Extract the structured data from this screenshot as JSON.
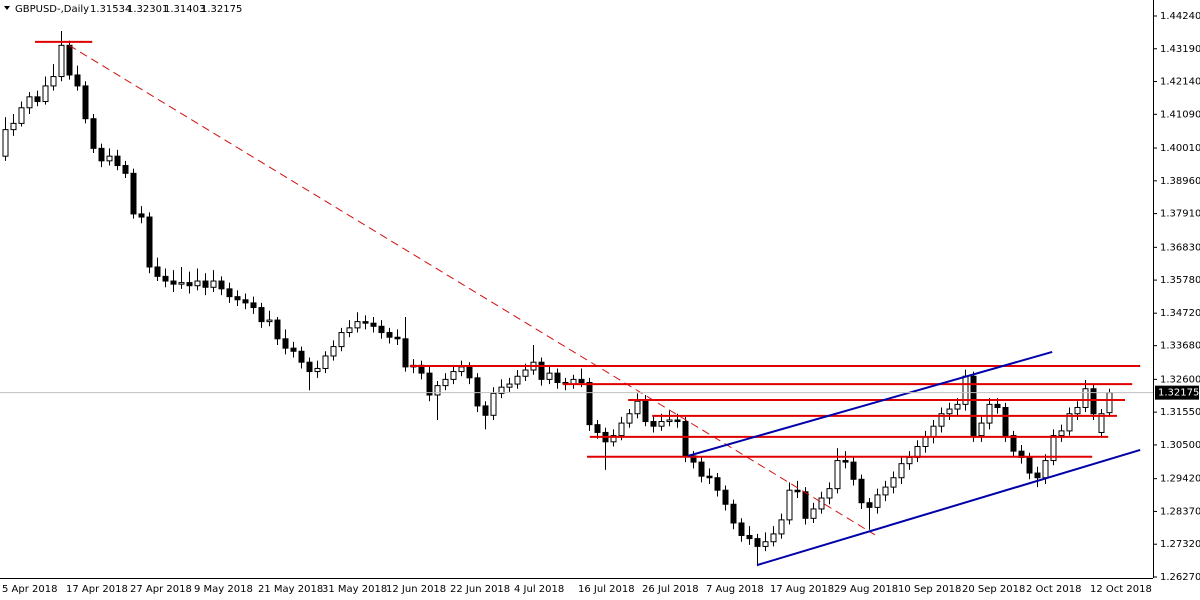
{
  "chart_data": {
    "type": "candlestick",
    "symbol": "GBPUSD-,Daily",
    "categories": [
      "5 Apr 2018",
      null,
      null,
      null,
      null,
      null,
      null,
      null,
      "17 Apr 2018",
      null,
      null,
      null,
      null,
      null,
      null,
      null,
      "27 Apr 2018",
      null,
      null,
      null,
      null,
      null,
      null,
      null,
      "9 May 2018",
      null,
      null,
      null,
      null,
      null,
      null,
      null,
      "21 May 2018",
      null,
      null,
      null,
      null,
      null,
      null,
      null,
      "31 May 2018",
      null,
      null,
      null,
      null,
      null,
      null,
      null,
      "12 Jun 2018",
      null,
      null,
      null,
      null,
      null,
      null,
      null,
      "22 Jun 2018",
      null,
      null,
      null,
      null,
      null,
      null,
      null,
      "4 Jul 2018",
      null,
      null,
      null,
      null,
      null,
      null,
      null,
      "16 Jul 2018",
      null,
      null,
      null,
      null,
      null,
      null,
      null,
      "26 Jul 2018",
      null,
      null,
      null,
      null,
      null,
      null,
      null,
      "7 Aug 2018",
      null,
      null,
      null,
      null,
      null,
      null,
      null,
      "17 Aug 2018",
      null,
      null,
      null,
      null,
      null,
      null,
      null,
      "29 Aug 2018",
      null,
      null,
      null,
      null,
      null,
      null,
      null,
      "10 Sep 2018",
      null,
      null,
      null,
      null,
      null,
      null,
      null,
      "20 Sep 2018",
      null,
      null,
      null,
      null,
      null,
      null,
      null,
      "2 Oct 2018",
      null,
      null,
      null,
      null,
      null,
      null,
      null,
      "12 Oct 2018",
      null,
      null
    ],
    "ohlc": [
      [
        1.3975,
        1.41,
        1.396,
        1.406
      ],
      [
        1.406,
        1.411,
        1.404,
        1.408
      ],
      [
        1.408,
        1.415,
        1.407,
        1.413
      ],
      [
        1.413,
        1.418,
        1.411,
        1.4165
      ],
      [
        1.4165,
        1.4185,
        1.4135,
        1.415
      ],
      [
        1.415,
        1.423,
        1.414,
        1.42
      ],
      [
        1.42,
        1.427,
        1.4185,
        1.423
      ],
      [
        1.423,
        1.4376,
        1.4215,
        1.433
      ],
      [
        1.433,
        1.4345,
        1.422,
        1.4235
      ],
      [
        1.4235,
        1.4265,
        1.4185,
        1.42
      ],
      [
        1.42,
        1.4215,
        1.408,
        1.4095
      ],
      [
        1.4095,
        1.411,
        1.3985,
        1.4
      ],
      [
        1.4,
        1.4015,
        1.394,
        1.396
      ],
      [
        1.396,
        1.4,
        1.3945,
        1.3975
      ],
      [
        1.3975,
        1.3995,
        1.393,
        1.3945
      ],
      [
        1.3945,
        1.396,
        1.3905,
        1.392
      ],
      [
        1.392,
        1.3935,
        1.3775,
        1.379
      ],
      [
        1.379,
        1.3815,
        1.376,
        1.378
      ],
      [
        1.378,
        1.3795,
        1.36,
        1.362
      ],
      [
        1.362,
        1.365,
        1.3575,
        1.359
      ],
      [
        1.359,
        1.3615,
        1.3555,
        1.3575
      ],
      [
        1.3575,
        1.361,
        1.354,
        1.3565
      ],
      [
        1.3565,
        1.362,
        1.355,
        1.357
      ],
      [
        1.357,
        1.3605,
        1.3535,
        1.356
      ],
      [
        1.356,
        1.3615,
        1.3545,
        1.3575
      ],
      [
        1.3575,
        1.36,
        1.353,
        1.3555
      ],
      [
        1.3555,
        1.361,
        1.354,
        1.3575
      ],
      [
        1.3575,
        1.359,
        1.353,
        1.355
      ],
      [
        1.355,
        1.357,
        1.3505,
        1.3525
      ],
      [
        1.3525,
        1.3545,
        1.3495,
        1.3515
      ],
      [
        1.3515,
        1.3535,
        1.3485,
        1.3505
      ],
      [
        1.3505,
        1.3525,
        1.347,
        1.349
      ],
      [
        1.349,
        1.3505,
        1.3425,
        1.3445
      ],
      [
        1.3445,
        1.348,
        1.343,
        1.345
      ],
      [
        1.345,
        1.346,
        1.337,
        1.339
      ],
      [
        1.339,
        1.342,
        1.334,
        1.336
      ],
      [
        1.336,
        1.338,
        1.333,
        1.335
      ],
      [
        1.335,
        1.3365,
        1.3295,
        1.3315
      ],
      [
        1.3315,
        1.333,
        1.3225,
        1.3285
      ],
      [
        1.3285,
        1.332,
        1.3265,
        1.3295
      ],
      [
        1.3295,
        1.335,
        1.328,
        1.3335
      ],
      [
        1.3335,
        1.3385,
        1.332,
        1.3365
      ],
      [
        1.3365,
        1.3425,
        1.335,
        1.341
      ],
      [
        1.341,
        1.345,
        1.3395,
        1.3425
      ],
      [
        1.3425,
        1.3475,
        1.341,
        1.3445
      ],
      [
        1.3445,
        1.3465,
        1.342,
        1.344
      ],
      [
        1.344,
        1.346,
        1.341,
        1.343
      ],
      [
        1.343,
        1.345,
        1.339,
        1.341
      ],
      [
        1.341,
        1.3425,
        1.3375,
        1.3395
      ],
      [
        1.3395,
        1.342,
        1.337,
        1.339
      ],
      [
        1.339,
        1.346,
        1.3285,
        1.33
      ],
      [
        1.33,
        1.3325,
        1.328,
        1.3305
      ],
      [
        1.3305,
        1.332,
        1.326,
        1.328
      ],
      [
        1.328,
        1.33,
        1.319,
        1.321
      ],
      [
        1.321,
        1.3255,
        1.313,
        1.324
      ],
      [
        1.324,
        1.328,
        1.3225,
        1.326
      ],
      [
        1.326,
        1.33,
        1.3245,
        1.3285
      ],
      [
        1.3285,
        1.332,
        1.327,
        1.33
      ],
      [
        1.33,
        1.3315,
        1.3245,
        1.3265
      ],
      [
        1.3265,
        1.328,
        1.3155,
        1.3175
      ],
      [
        1.3175,
        1.319,
        1.31,
        1.3145
      ],
      [
        1.3145,
        1.3235,
        1.313,
        1.3215
      ],
      [
        1.3215,
        1.326,
        1.32,
        1.3235
      ],
      [
        1.3235,
        1.3265,
        1.322,
        1.3245
      ],
      [
        1.3245,
        1.329,
        1.323,
        1.327
      ],
      [
        1.327,
        1.331,
        1.3255,
        1.329
      ],
      [
        1.329,
        1.337,
        1.3275,
        1.3315
      ],
      [
        1.3315,
        1.333,
        1.324,
        1.326
      ],
      [
        1.326,
        1.33,
        1.3245,
        1.328
      ],
      [
        1.328,
        1.3295,
        1.323,
        1.325
      ],
      [
        1.325,
        1.3265,
        1.3225,
        1.3245
      ],
      [
        1.3245,
        1.3275,
        1.323,
        1.326
      ],
      [
        1.326,
        1.3295,
        1.3235,
        1.325
      ],
      [
        1.325,
        1.3265,
        1.3095,
        1.3115
      ],
      [
        1.3115,
        1.313,
        1.307,
        1.309
      ],
      [
        1.309,
        1.3105,
        1.297,
        1.306
      ],
      [
        1.306,
        1.31,
        1.3045,
        1.308
      ],
      [
        1.308,
        1.314,
        1.3065,
        1.312
      ],
      [
        1.312,
        1.3165,
        1.3105,
        1.315
      ],
      [
        1.315,
        1.3215,
        1.3135,
        1.319
      ],
      [
        1.319,
        1.321,
        1.311,
        1.3125
      ],
      [
        1.3125,
        1.3145,
        1.309,
        1.311
      ],
      [
        1.311,
        1.315,
        1.3095,
        1.3125
      ],
      [
        1.3125,
        1.316,
        1.311,
        1.313
      ],
      [
        1.313,
        1.315,
        1.3105,
        1.3125
      ],
      [
        1.3125,
        1.314,
        1.2995,
        1.3015
      ],
      [
        1.3015,
        1.303,
        1.2975,
        1.2995
      ],
      [
        1.2995,
        1.301,
        1.293,
        1.295
      ],
      [
        1.295,
        1.2975,
        1.2925,
        1.2945
      ],
      [
        1.2945,
        1.296,
        1.2885,
        1.2905
      ],
      [
        1.2905,
        1.292,
        1.284,
        1.286
      ],
      [
        1.286,
        1.2875,
        1.278,
        1.28
      ],
      [
        1.28,
        1.2815,
        1.274,
        1.276
      ],
      [
        1.276,
        1.279,
        1.273,
        1.275
      ],
      [
        1.275,
        1.2765,
        1.2662,
        1.2725
      ],
      [
        1.2725,
        1.277,
        1.271,
        1.274
      ],
      [
        1.274,
        1.279,
        1.2725,
        1.2765
      ],
      [
        1.2765,
        1.283,
        1.275,
        1.281
      ],
      [
        1.281,
        1.293,
        1.2795,
        1.2905
      ],
      [
        1.2905,
        1.2935,
        1.288,
        1.29
      ],
      [
        1.29,
        1.2915,
        1.2795,
        1.2815
      ],
      [
        1.2815,
        1.2865,
        1.28,
        1.2845
      ],
      [
        1.2845,
        1.29,
        1.283,
        1.288
      ],
      [
        1.288,
        1.293,
        1.286,
        1.291
      ],
      [
        1.291,
        1.304,
        1.2895,
        1.3
      ],
      [
        1.3,
        1.303,
        1.2975,
        1.2995
      ],
      [
        1.2995,
        1.301,
        1.292,
        1.294
      ],
      [
        1.294,
        1.2955,
        1.2845,
        1.2865
      ],
      [
        1.2865,
        1.288,
        1.2778,
        1.285
      ],
      [
        1.285,
        1.291,
        1.283,
        1.289
      ],
      [
        1.289,
        1.2935,
        1.287,
        1.2915
      ],
      [
        1.2915,
        1.2965,
        1.2895,
        1.2945
      ],
      [
        1.2945,
        1.301,
        1.2925,
        1.299
      ],
      [
        1.299,
        1.303,
        1.297,
        1.301
      ],
      [
        1.301,
        1.3065,
        1.2995,
        1.3045
      ],
      [
        1.3045,
        1.3095,
        1.3025,
        1.3075
      ],
      [
        1.3075,
        1.313,
        1.3055,
        1.311
      ],
      [
        1.311,
        1.317,
        1.309,
        1.315
      ],
      [
        1.315,
        1.3185,
        1.313,
        1.3165
      ],
      [
        1.3165,
        1.32,
        1.3145,
        1.318
      ],
      [
        1.318,
        1.3291,
        1.316,
        1.327
      ],
      [
        1.327,
        1.3285,
        1.306,
        1.308
      ],
      [
        1.308,
        1.314,
        1.306,
        1.312
      ],
      [
        1.312,
        1.32,
        1.31,
        1.318
      ],
      [
        1.318,
        1.32,
        1.315,
        1.317
      ],
      [
        1.317,
        1.3185,
        1.306,
        1.308
      ],
      [
        1.308,
        1.3095,
        1.301,
        1.303
      ],
      [
        1.303,
        1.305,
        1.299,
        1.301
      ],
      [
        1.301,
        1.3025,
        1.294,
        1.296
      ],
      [
        1.296,
        1.298,
        1.2915,
        1.2945
      ],
      [
        1.2945,
        1.302,
        1.2925,
        1.3
      ],
      [
        1.3,
        1.31,
        1.2985,
        1.308
      ],
      [
        1.308,
        1.3115,
        1.306,
        1.3095
      ],
      [
        1.3095,
        1.317,
        1.308,
        1.315
      ],
      [
        1.315,
        1.319,
        1.313,
        1.317
      ],
      [
        1.317,
        1.3258,
        1.3155,
        1.323
      ],
      [
        1.323,
        1.3245,
        1.313,
        1.315
      ],
      [
        1.309,
        1.3165,
        1.3075,
        1.315
      ],
      [
        1.31534,
        1.32301,
        1.31403,
        1.32175
      ]
    ],
    "up_color": "#ffffff",
    "down_color": "#000000",
    "outline_color": "#000000",
    "ylim": [
      1.26238,
      1.44752
    ],
    "yticks": [
      {
        "value": 1.4424,
        "label": "1.44240"
      },
      {
        "value": 1.4319,
        "label": "1.43190"
      },
      {
        "value": 1.4214,
        "label": "1.42140"
      },
      {
        "value": 1.4109,
        "label": "1.41090"
      },
      {
        "value": 1.4001,
        "label": "1.40010"
      },
      {
        "value": 1.3896,
        "label": "1.38960"
      },
      {
        "value": 1.3791,
        "label": "1.37910"
      },
      {
        "value": 1.3683,
        "label": "1.36830"
      },
      {
        "value": 1.3578,
        "label": "1.35780"
      },
      {
        "value": 1.3472,
        "label": "1.34720"
      },
      {
        "value": 1.3368,
        "label": "1.33680"
      },
      {
        "value": 1.326,
        "label": "1.32600"
      },
      {
        "value": 1.3155,
        "label": "1.31550"
      },
      {
        "value": 1.305,
        "label": "1.30500"
      },
      {
        "value": 1.2942,
        "label": "1.29420"
      },
      {
        "value": 1.2837,
        "label": "1.28370"
      },
      {
        "value": 1.2732,
        "label": "1.27320"
      },
      {
        "value": 1.2627,
        "label": "1.26270"
      }
    ],
    "drawn_lines": [
      {
        "color": "#e00000",
        "dashed": false,
        "points": [
          [
            3.75,
            1.4341
          ],
          [
            10.9,
            1.4341
          ]
        ]
      },
      {
        "color": "#d01010",
        "dashed": true,
        "points": [
          [
            8,
            1.433
          ],
          [
            108.75,
            1.2762
          ]
        ]
      },
      {
        "color": "#e00000",
        "dashed": false,
        "points": [
          [
            50.6,
            1.3303
          ],
          [
            141.9,
            1.3303
          ]
        ]
      },
      {
        "color": "#e00000",
        "dashed": false,
        "points": [
          [
            69.75,
            1.3245
          ],
          [
            140.9,
            1.3245
          ]
        ]
      },
      {
        "color": "#e00000",
        "dashed": false,
        "points": [
          [
            77.9,
            1.3194
          ],
          [
            140,
            1.3194
          ]
        ]
      },
      {
        "color": "#e00000",
        "dashed": false,
        "points": [
          [
            80.9,
            1.3143
          ],
          [
            139,
            1.3143
          ]
        ]
      },
      {
        "color": "#e00000",
        "dashed": false,
        "points": [
          [
            73.1,
            1.3076
          ],
          [
            137.9,
            1.3076
          ]
        ]
      },
      {
        "color": "#e00000",
        "dashed": false,
        "points": [
          [
            72.75,
            1.3012
          ],
          [
            135.9,
            1.3012
          ]
        ]
      },
      {
        "color": "#0000aa",
        "dashed": false,
        "points": [
          [
            85.4,
            1.3015
          ],
          [
            130.9,
            1.3348
          ]
        ]
      },
      {
        "color": "#0000aa",
        "dashed": false,
        "points": [
          [
            94,
            1.2665
          ],
          [
            141.9,
            1.3034
          ]
        ]
      }
    ]
  }
}
